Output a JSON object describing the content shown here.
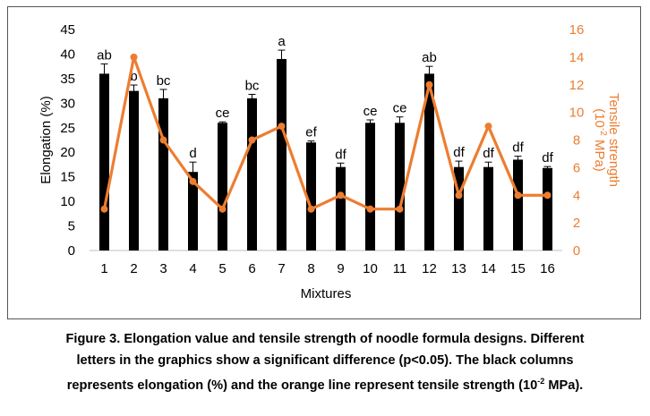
{
  "chart_data": {
    "type": "bar",
    "categories": [
      "1",
      "2",
      "3",
      "4",
      "5",
      "6",
      "7",
      "8",
      "9",
      "10",
      "11",
      "12",
      "13",
      "14",
      "15",
      "16"
    ],
    "xlabel": "Mixtures",
    "series": [
      {
        "axis": "left",
        "type": "bar",
        "values": [
          36,
          32.5,
          31,
          16,
          26,
          31,
          39,
          22,
          17,
          26,
          26,
          36,
          17,
          17,
          18.5,
          16.8
        ],
        "errors": [
          2,
          1.2,
          1.8,
          2,
          0.2,
          0.8,
          1.8,
          0.3,
          0.8,
          0.6,
          1.2,
          1.5,
          1.2,
          1,
          0.7,
          0.3
        ],
        "letters": [
          "ab",
          "b",
          "bc",
          "d",
          "ce",
          "bc",
          "a",
          "ef",
          "df",
          "ce",
          "ce",
          "ab",
          "df",
          "df",
          "df",
          "df"
        ]
      },
      {
        "axis": "right",
        "type": "line",
        "values": [
          3,
          14,
          8,
          5,
          3,
          8,
          9,
          3,
          4,
          3,
          3,
          12,
          4,
          9,
          4,
          4
        ]
      }
    ],
    "y_left": {
      "label": "Elongation (%)",
      "lim": [
        0,
        45
      ],
      "ticks": [
        0,
        5,
        10,
        15,
        20,
        25,
        30,
        35,
        40,
        45
      ]
    },
    "y_right": {
      "label_main": "Tensile strength",
      "label_unit": "(10",
      "label_exp": "-2",
      "label_tail": " MPa)",
      "lim": [
        0,
        16
      ],
      "ticks": [
        0,
        2,
        4,
        6,
        8,
        10,
        12,
        14,
        16
      ]
    },
    "colors": {
      "bar": "#000000",
      "line": "#ED7D31",
      "axis_text": "#000000",
      "right_axis_text": "#ED7D31"
    }
  },
  "caption": {
    "line1": "Figure 3. Elongation value and tensile strength of noodle formula designs. Different",
    "line2": "letters in the graphics show a significant difference (p<0.05). The black columns",
    "line3_pre": "represents elongation (%) and the orange line represent tensile strength (10",
    "line3_sup": "-2",
    "line3_post": " MPa)."
  }
}
